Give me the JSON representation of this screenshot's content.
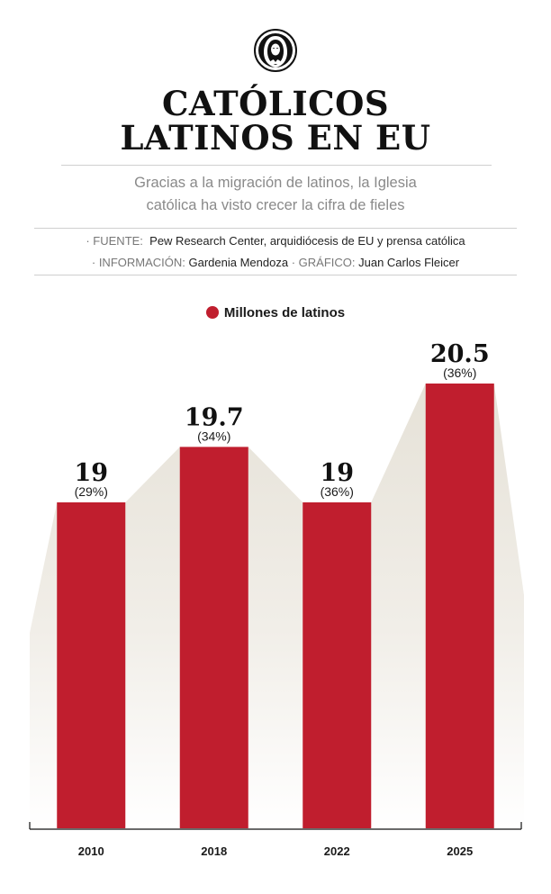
{
  "header": {
    "title_line1": "CATÓLICOS",
    "title_line2": "LATINOS EN EU",
    "subtitle_line1": "Gracias a la migración de latinos, la Iglesia",
    "subtitle_line2": "católica ha visto crecer la cifra de fieles"
  },
  "credits": {
    "source_label": "· FUENTE:",
    "source_value": "Pew Research Center, arquidiócesis de EU y prensa católica",
    "info_label": "· INFORMACIÓN:",
    "info_value": "Gardenia Mendoza",
    "graphic_label": "· GRÁFICO:",
    "graphic_value": "Juan Carlos Fleicer"
  },
  "icons": {
    "logo": "virgin-mary-icon"
  },
  "colors": {
    "bar": "#c01e2e",
    "area": "#e9e5dc"
  },
  "chart_data": {
    "type": "bar",
    "categories": [
      "2010",
      "2018",
      "2022",
      "2025"
    ],
    "series": [
      {
        "name": "Millones de latinos",
        "values": [
          19,
          19.7,
          19,
          20.5
        ],
        "labels": [
          "19",
          "19.7",
          "19",
          "20.5"
        ],
        "share_labels": [
          "(29%)",
          "(34%)",
          "(36%)",
          "(36%)"
        ],
        "share_percent": [
          29,
          34,
          36,
          36
        ]
      }
    ],
    "title": "",
    "xlabel": "",
    "ylabel": "",
    "legend": "top-center",
    "grid": false
  }
}
